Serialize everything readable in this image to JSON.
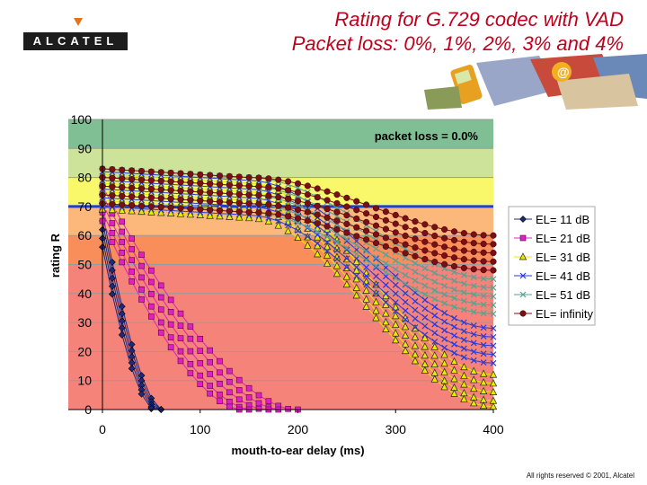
{
  "header": {
    "logo_text": "ALCATEL",
    "title_line1": "Rating for G.729 codec with VAD",
    "title_line2": "Packet loss: 0%, 1%, 2%, 3% and 4%"
  },
  "footer": {
    "copyright": "All rights reserved © 2001, Alcatel"
  },
  "chart_data": {
    "type": "line",
    "title": "",
    "annotation": "packet loss = 0.0%",
    "xlabel": "mouth-to-ear delay (ms)",
    "ylabel": "rating R",
    "xlim": [
      0,
      400
    ],
    "ylim": [
      0,
      100
    ],
    "x_ticks": [
      "0",
      "100",
      "200",
      "300",
      "400"
    ],
    "y_ticks": [
      "0",
      "10",
      "20",
      "30",
      "40",
      "50",
      "60",
      "70",
      "80",
      "90",
      "100"
    ],
    "threshold_line": 70,
    "bands": [
      {
        "from": 0,
        "to": 50,
        "color": "#f5837a"
      },
      {
        "from": 50,
        "to": 60,
        "color": "#f98e5a"
      },
      {
        "from": 60,
        "to": 70,
        "color": "#fcb87a"
      },
      {
        "from": 70,
        "to": 80,
        "color": "#f8f86a"
      },
      {
        "from": 80,
        "to": 90,
        "color": "#cde39a"
      },
      {
        "from": 90,
        "to": 100,
        "color": "#7fbf93"
      }
    ],
    "packet_loss_pct": [
      0,
      1,
      2,
      3,
      4
    ],
    "x": [
      0,
      10,
      20,
      30,
      40,
      50,
      60,
      70,
      80,
      90,
      100,
      110,
      120,
      130,
      140,
      150,
      160,
      170,
      180,
      190,
      200,
      210,
      220,
      230,
      240,
      250,
      260,
      270,
      280,
      290,
      300,
      310,
      320,
      330,
      340,
      350,
      360,
      370,
      380,
      390,
      400
    ],
    "series": [
      {
        "name": "EL= 11 dB",
        "color": "#1f2a7a",
        "marker": "diamond",
        "start": [
          68,
          65,
          62,
          59,
          56
        ],
        "end_delay": [
          60,
          58,
          56,
          54,
          52
        ]
      },
      {
        "name": "EL= 21 dB",
        "color": "#e020c0",
        "marker": "square",
        "start": [
          77,
          74,
          71,
          68,
          65
        ],
        "end_delay": [
          195,
          180,
          165,
          150,
          140
        ]
      },
      {
        "name": "EL= 31 dB",
        "color": "#e8e800",
        "marker": "triangle",
        "start": [
          81,
          78,
          75,
          72,
          69
        ],
        "at_400": [
          12,
          9,
          6,
          3,
          1
        ]
      },
      {
        "name": "EL= 41 dB",
        "color": "#2a3ad8",
        "marker": "x",
        "start": [
          82,
          79,
          76,
          73,
          70
        ],
        "at_400": [
          28,
          25,
          22,
          19,
          16
        ]
      },
      {
        "name": "EL= 51 dB",
        "color": "#5aa090",
        "marker": "x",
        "start": [
          83,
          80,
          77,
          74,
          71
        ],
        "at_400": [
          45,
          42,
          39,
          36,
          33
        ]
      },
      {
        "name": "EL= infinity",
        "color": "#7a0f14",
        "marker": "circle",
        "start": [
          83,
          80,
          77,
          74,
          71
        ],
        "at_400": [
          60,
          57,
          54,
          51,
          48
        ]
      }
    ]
  }
}
